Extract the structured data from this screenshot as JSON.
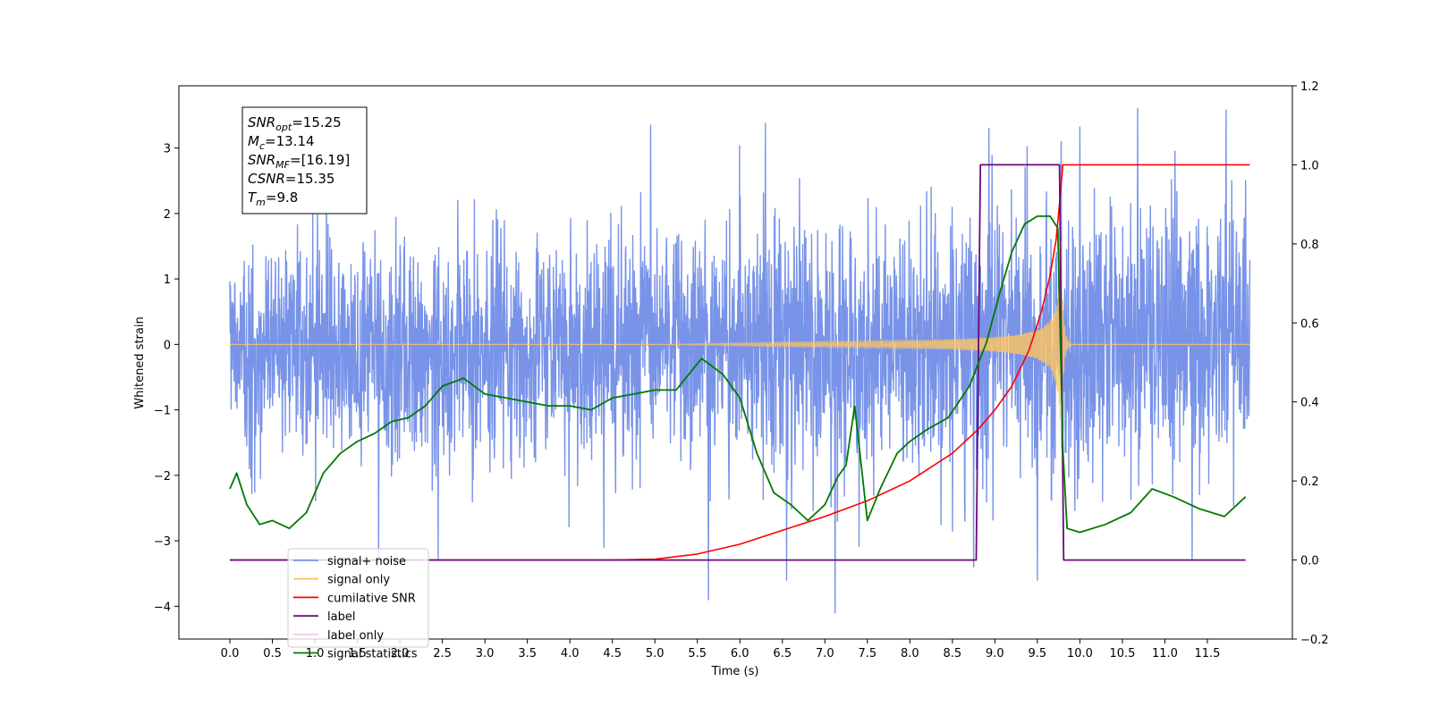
{
  "chart_data": {
    "type": "line",
    "title": "",
    "xlabel": "Time (s)",
    "ylabel": "Whitened strain",
    "xlim": [
      -0.6,
      12.5
    ],
    "ylim": [
      -4.5,
      3.95
    ],
    "y2lim": [
      -0.2,
      1.2
    ],
    "x_ticks": [
      0.0,
      0.5,
      1.0,
      1.5,
      2.0,
      2.5,
      3.0,
      3.5,
      4.0,
      4.5,
      5.0,
      5.5,
      6.0,
      6.5,
      7.0,
      7.5,
      8.0,
      8.5,
      9.0,
      9.5,
      10.0,
      10.5,
      11.0,
      11.5
    ],
    "x_tick_labels": [
      "0.0",
      "0.5",
      "1.0",
      "1.5",
      "2.0",
      "2.5",
      "3.0",
      "3.5",
      "4.0",
      "4.5",
      "5.0",
      "5.5",
      "6.0",
      "6.5",
      "7.0",
      "7.5",
      "8.0",
      "8.5",
      "9.0",
      "9.5",
      "10.0",
      "10.5",
      "11.0",
      "11.5"
    ],
    "y_ticks": [
      -4,
      -3,
      -2,
      -1,
      0,
      1,
      2,
      3
    ],
    "y_tick_labels": [
      "−4",
      "−3",
      "−2",
      "−1",
      "0",
      "1",
      "2",
      "3"
    ],
    "y2_ticks": [
      -0.2,
      0.0,
      0.2,
      0.4,
      0.6,
      0.8,
      1.0,
      1.2
    ],
    "y2_tick_labels": [
      "−0.2",
      "0.0",
      "0.2",
      "0.4",
      "0.6",
      "0.8",
      "1.0",
      "1.2"
    ],
    "grid": false,
    "legend_position": "lower-left",
    "info_box": {
      "lines": [
        {
          "base": "SNR",
          "sub": "opt",
          "value": "=15.25"
        },
        {
          "base": "M",
          "sub": "c",
          "value": "=13.14"
        },
        {
          "base": "SNR",
          "sub": "MF",
          "value": "=[16.19]"
        },
        {
          "base": "CSNR",
          "sub": "",
          "value": "=15.35"
        },
        {
          "base": "T",
          "sub": "m",
          "value": "=9.8"
        }
      ]
    },
    "series": [
      {
        "name": "signal+ noise",
        "axis": "left",
        "color": "#7893e8",
        "x_range": [
          0.0,
          12.0
        ],
        "envelope_upper": [
          1.5,
          1.7,
          1.6,
          1.8,
          1.7,
          1.9,
          1.8,
          2.0,
          2.1,
          2.0,
          2.2,
          2.1,
          2.0,
          2.3,
          2.1,
          2.2,
          2.4,
          2.3,
          2.2
        ],
        "envelope_lower": [
          -2.0,
          -2.2,
          -2.1,
          -2.3,
          -2.4,
          -2.2,
          -2.5,
          -2.3,
          -2.2,
          -2.4,
          -2.3,
          -2.5,
          -2.4,
          -2.6,
          -2.3,
          -2.5,
          -2.2,
          -2.4,
          -2.3
        ],
        "spikes": [
          {
            "x": 5.63,
            "y": -3.9
          },
          {
            "x": 7.12,
            "y": -4.1
          },
          {
            "x": 9.5,
            "y": -3.6
          },
          {
            "x": 6.55,
            "y": -3.6
          },
          {
            "x": 1.75,
            "y": -3.4
          },
          {
            "x": 11.32,
            "y": -3.3
          },
          {
            "x": 2.45,
            "y": -3.3
          },
          {
            "x": 4.4,
            "y": -3.1
          },
          {
            "x": 8.75,
            "y": -3.4
          },
          {
            "x": 10.68,
            "y": 3.6
          },
          {
            "x": 11.72,
            "y": 3.58
          },
          {
            "x": 6.3,
            "y": 3.38
          },
          {
            "x": 8.93,
            "y": 3.3
          },
          {
            "x": 10.0,
            "y": 3.32
          },
          {
            "x": 4.95,
            "y": 3.35
          },
          {
            "x": 9.78,
            "y": 3.1
          },
          {
            "x": 11.95,
            "y": 2.5
          }
        ]
      },
      {
        "name": "signal only",
        "axis": "left",
        "color": "#ffc560",
        "x_range": [
          0.0,
          12.0
        ],
        "chirp_start": 5.0,
        "chirp_peak_time": 9.78,
        "chirp_peak_amplitude": 1.75
      },
      {
        "name": "cumilative SNR",
        "axis": "right",
        "color": "#ff0000",
        "points": [
          [
            0.0,
            0.0
          ],
          [
            4.5,
            0.0
          ],
          [
            5.0,
            0.002
          ],
          [
            5.5,
            0.015
          ],
          [
            6.0,
            0.04
          ],
          [
            6.5,
            0.075
          ],
          [
            7.0,
            0.11
          ],
          [
            7.5,
            0.15
          ],
          [
            8.0,
            0.2
          ],
          [
            8.5,
            0.27
          ],
          [
            8.8,
            0.33
          ],
          [
            9.0,
            0.38
          ],
          [
            9.2,
            0.44
          ],
          [
            9.4,
            0.53
          ],
          [
            9.55,
            0.63
          ],
          [
            9.65,
            0.72
          ],
          [
            9.72,
            0.81
          ],
          [
            9.76,
            0.9
          ],
          [
            9.8,
            1.0
          ],
          [
            12.0,
            1.0
          ]
        ]
      },
      {
        "name": "label",
        "axis": "right",
        "color": "#6a0a78",
        "points": [
          [
            0.0,
            0.0
          ],
          [
            8.78,
            0.0
          ],
          [
            8.83,
            1.0
          ],
          [
            9.76,
            1.0
          ],
          [
            9.81,
            0.0
          ],
          [
            11.95,
            0.0
          ]
        ]
      },
      {
        "name": "label only",
        "axis": "right",
        "color": "#f5c6f0",
        "points": []
      },
      {
        "name": "signal statistics",
        "axis": "right",
        "color": "#007a00",
        "points": [
          [
            0.0,
            0.18
          ],
          [
            0.08,
            0.22
          ],
          [
            0.2,
            0.14
          ],
          [
            0.35,
            0.09
          ],
          [
            0.5,
            0.1
          ],
          [
            0.7,
            0.08
          ],
          [
            0.9,
            0.12
          ],
          [
            1.1,
            0.22
          ],
          [
            1.3,
            0.27
          ],
          [
            1.5,
            0.3
          ],
          [
            1.7,
            0.32
          ],
          [
            1.9,
            0.35
          ],
          [
            2.1,
            0.36
          ],
          [
            2.3,
            0.39
          ],
          [
            2.5,
            0.44
          ],
          [
            2.75,
            0.46
          ],
          [
            3.0,
            0.42
          ],
          [
            3.25,
            0.41
          ],
          [
            3.5,
            0.4
          ],
          [
            3.75,
            0.39
          ],
          [
            4.0,
            0.39
          ],
          [
            4.25,
            0.38
          ],
          [
            4.5,
            0.41
          ],
          [
            4.75,
            0.42
          ],
          [
            5.0,
            0.43
          ],
          [
            5.25,
            0.43
          ],
          [
            5.4,
            0.47
          ],
          [
            5.55,
            0.51
          ],
          [
            5.8,
            0.47
          ],
          [
            6.0,
            0.41
          ],
          [
            6.2,
            0.27
          ],
          [
            6.4,
            0.17
          ],
          [
            6.6,
            0.14
          ],
          [
            6.8,
            0.1
          ],
          [
            7.0,
            0.14
          ],
          [
            7.15,
            0.21
          ],
          [
            7.25,
            0.24
          ],
          [
            7.35,
            0.39
          ],
          [
            7.5,
            0.1
          ],
          [
            7.65,
            0.18
          ],
          [
            7.85,
            0.27
          ],
          [
            8.0,
            0.3
          ],
          [
            8.2,
            0.33
          ],
          [
            8.45,
            0.36
          ],
          [
            8.7,
            0.44
          ],
          [
            8.9,
            0.55
          ],
          [
            9.05,
            0.67
          ],
          [
            9.2,
            0.78
          ],
          [
            9.35,
            0.85
          ],
          [
            9.5,
            0.87
          ],
          [
            9.65,
            0.87
          ],
          [
            9.74,
            0.84
          ],
          [
            9.8,
            0.28
          ],
          [
            9.85,
            0.08
          ],
          [
            10.0,
            0.07
          ],
          [
            10.3,
            0.09
          ],
          [
            10.6,
            0.12
          ],
          [
            10.85,
            0.18
          ],
          [
            11.1,
            0.16
          ],
          [
            11.4,
            0.13
          ],
          [
            11.7,
            0.11
          ],
          [
            11.95,
            0.16
          ]
        ]
      }
    ]
  }
}
